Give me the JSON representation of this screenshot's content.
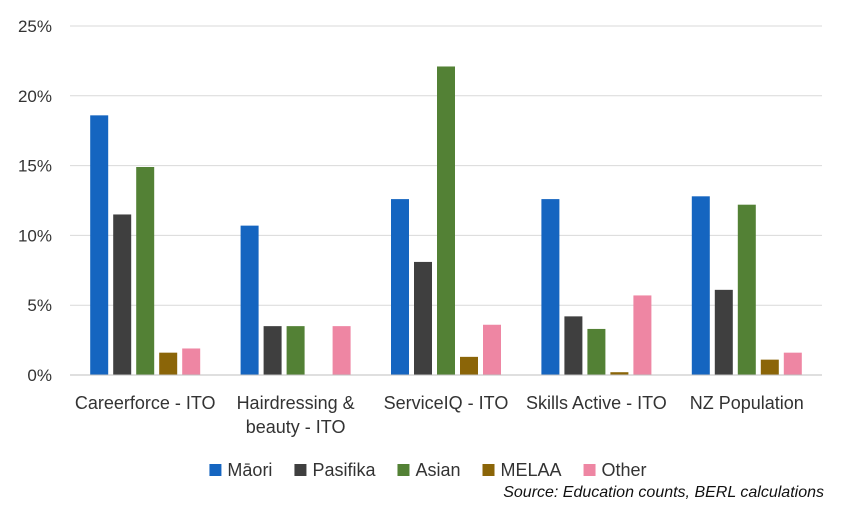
{
  "chart_data": {
    "type": "bar",
    "title": "",
    "xlabel": "",
    "ylabel": "",
    "categories": [
      [
        "Careerforce - ITO"
      ],
      [
        "Hairdressing &",
        "beauty - ITO"
      ],
      [
        "ServiceIQ - ITO"
      ],
      [
        "Skills Active - ITO"
      ],
      [
        "NZ Population"
      ]
    ],
    "series": [
      {
        "name": "Māori",
        "color": "#1565C0",
        "values": [
          18.6,
          10.7,
          12.6,
          12.6,
          12.8
        ]
      },
      {
        "name": "Pasifika",
        "color": "#3F3F3F",
        "values": [
          11.5,
          3.5,
          8.1,
          4.2,
          6.1
        ]
      },
      {
        "name": "Asian",
        "color": "#538135",
        "values": [
          14.9,
          3.5,
          22.1,
          3.3,
          12.2
        ]
      },
      {
        "name": "MELAA",
        "color": "#8B6508",
        "values": [
          1.6,
          0,
          1.3,
          0.2,
          1.1
        ]
      },
      {
        "name": "Other",
        "color": "#EE86A3",
        "values": [
          1.9,
          3.5,
          3.6,
          5.7,
          1.6
        ]
      }
    ],
    "ylim": [
      0,
      25
    ],
    "yticks": [
      "0%",
      "5%",
      "10%",
      "15%",
      "20%",
      "25%"
    ],
    "ytick_values": [
      0,
      5,
      10,
      15,
      20,
      25
    ],
    "grid": true,
    "legend_position": "bottom"
  },
  "source": "Source: Education counts, BERL calculations"
}
